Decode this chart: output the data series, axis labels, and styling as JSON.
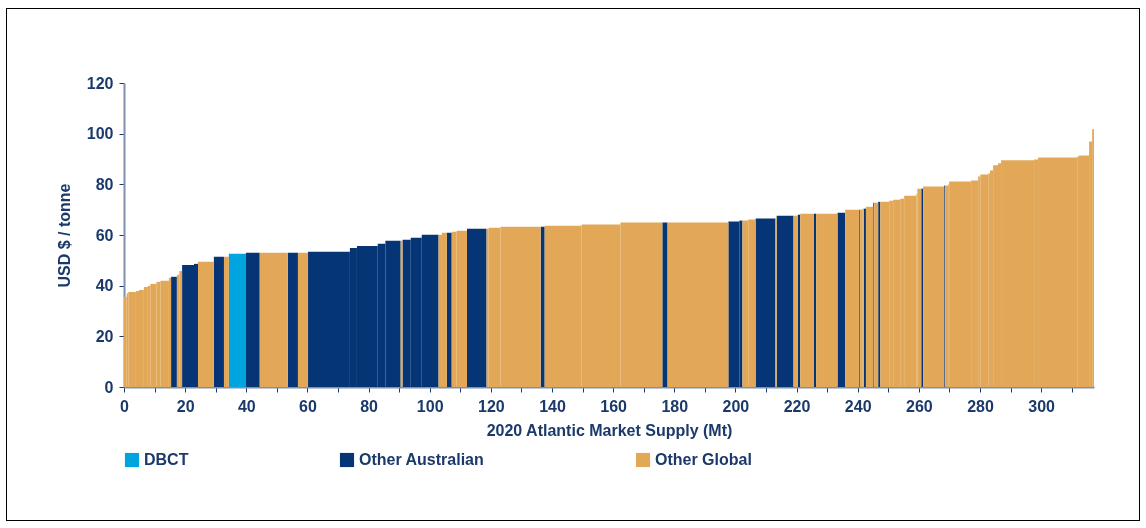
{
  "chart_data": {
    "type": "histogram",
    "xlabel": "2020 Atlantic Market Supply (Mt)",
    "ylabel": "USD $ / tonne",
    "bins": [
      0,
      0.9,
      1.4,
      3.9,
      4.9,
      6.5,
      7.8,
      8.6,
      10.6,
      11.9,
      14.7,
      15.4,
      17.3,
      18.1,
      19.0,
      22.9,
      24.2,
      29.4,
      32.7,
      34.3,
      39.9,
      44.4,
      53.6,
      56.9,
      60.2,
      73.9,
      76.2,
      83.0,
      85.5,
      90.5,
      91.1,
      93.8,
      97.4,
      102.9,
      104.0,
      105.6,
      107.2,
      108.8,
      112.2,
      118.6,
      119.3,
      123.2,
      136.3,
      137.6,
      149.7,
      162.4,
      176.1,
      177.8,
      197.7,
      201.3,
      202.3,
      204.2,
      206.6,
      213.1,
      213.5,
      219.0,
      220.4,
      221.2,
      225.7,
      226.4,
      233.4,
      235.9,
      240.5,
      240.8,
      241.5,
      242.0,
      242.7,
      245.1,
      245.4,
      246.7,
      247.4,
      250.3,
      251.6,
      253.9,
      255.2,
      259.2,
      259.5,
      260.8,
      261.4,
      268.3,
      268.6,
      269.6,
      269.9,
      277.1,
      279.4,
      280.1,
      282.7,
      283.3,
      284.3,
      285.9,
      286.9,
      297.7,
      299.0,
      311.8,
      312.4,
      315.7,
      316.7,
      317.3
    ],
    "series": [
      {
        "name": "DBCT",
        "color": "#00a5e0",
        "values": [
          null,
          null,
          null,
          null,
          null,
          null,
          null,
          null,
          null,
          null,
          null,
          null,
          null,
          null,
          null,
          null,
          null,
          null,
          null,
          52.6,
          null,
          null,
          null,
          null,
          null,
          null,
          null,
          null,
          null,
          null,
          null,
          null,
          null,
          null,
          null,
          null,
          null,
          null,
          null,
          null,
          null,
          null,
          null,
          null,
          null,
          null,
          null,
          null,
          null,
          null,
          null,
          null,
          null,
          null,
          null,
          null,
          null,
          null,
          null,
          null,
          null,
          null,
          null,
          null,
          null,
          null,
          null,
          null,
          null,
          null,
          null,
          null,
          null,
          null,
          null,
          null,
          null,
          null,
          null,
          null,
          null,
          null,
          null,
          null,
          null,
          null,
          null,
          null,
          null,
          null,
          null,
          null,
          null,
          null,
          null,
          null,
          null
        ]
      },
      {
        "name": "Other Australian",
        "color": "#063576",
        "values": [
          null,
          null,
          null,
          null,
          null,
          null,
          null,
          null,
          null,
          null,
          null,
          43.5,
          null,
          null,
          48.2,
          48.6,
          null,
          51.4,
          null,
          null,
          53.0,
          null,
          53.0,
          null,
          53.4,
          54.9,
          55.7,
          56.5,
          57.7,
          null,
          58.1,
          58.9,
          60.1,
          null,
          null,
          60.9,
          null,
          null,
          62.5,
          null,
          null,
          null,
          63.3,
          null,
          null,
          null,
          64.9,
          null,
          65.3,
          65.7,
          null,
          null,
          66.5,
          null,
          67.6,
          null,
          68.0,
          null,
          68.4,
          null,
          68.8,
          null,
          70.0,
          null,
          null,
          70.4,
          null,
          72.7,
          null,
          73.1,
          null,
          null,
          null,
          null,
          null,
          null,
          null,
          78.3,
          null,
          79.5,
          null,
          null,
          null,
          null,
          null,
          null,
          null,
          null,
          null,
          null,
          null,
          null,
          null,
          null,
          null,
          null,
          null
        ]
      },
      {
        "name": "Other Global",
        "color": "#e2a857",
        "values": [
          35.6,
          37.0,
          37.5,
          37.9,
          38.3,
          39.5,
          39.9,
          40.7,
          41.5,
          41.9,
          43.1,
          null,
          44.3,
          45.8,
          null,
          null,
          49.4,
          null,
          51.4,
          null,
          null,
          53.0,
          null,
          53.0,
          null,
          null,
          null,
          null,
          null,
          57.7,
          null,
          null,
          null,
          60.1,
          60.9,
          null,
          61.3,
          61.7,
          null,
          62.5,
          62.9,
          63.3,
          null,
          63.7,
          64.1,
          64.9,
          null,
          64.9,
          null,
          null,
          65.7,
          66.1,
          null,
          66.5,
          null,
          67.6,
          null,
          68.4,
          null,
          68.4,
          null,
          70.0,
          null,
          70.0,
          70.4,
          null,
          71.2,
          null,
          72.7,
          null,
          73.1,
          73.5,
          73.9,
          74.3,
          75.5,
          76.3,
          78.3,
          null,
          79.1,
          null,
          79.5,
          79.9,
          81.1,
          81.5,
          83.1,
          83.9,
          84.3,
          85.5,
          87.5,
          88.3,
          89.5,
          89.8,
          90.6,
          91.0,
          91.4,
          96.9,
          101.7
        ]
      }
    ],
    "xlim": [
      0,
      317.3
    ],
    "xticks": [
      0,
      {
        "value": 10,
        "label": null
      },
      20,
      {
        "value": 30,
        "label": null
      },
      40,
      {
        "value": 50,
        "label": null
      },
      60,
      {
        "value": 70,
        "label": null
      },
      80,
      {
        "value": 90,
        "label": null
      },
      100,
      {
        "value": 110,
        "label": null
      },
      120,
      {
        "value": 130,
        "label": null
      },
      140,
      {
        "value": 150,
        "label": null
      },
      160,
      {
        "value": 170,
        "label": null
      },
      180,
      {
        "value": 190,
        "label": null
      },
      200,
      {
        "value": 210,
        "label": null
      },
      220,
      {
        "value": 230,
        "label": null
      },
      240,
      {
        "value": 250,
        "label": null
      },
      260,
      {
        "value": 270,
        "label": null
      },
      280,
      {
        "value": 290,
        "label": null
      },
      300,
      {
        "value": 310,
        "label": null
      }
    ],
    "ylim": [
      0,
      120
    ],
    "yticks": [
      0,
      20,
      40,
      60,
      80,
      100,
      120
    ],
    "legend": "bottom"
  }
}
